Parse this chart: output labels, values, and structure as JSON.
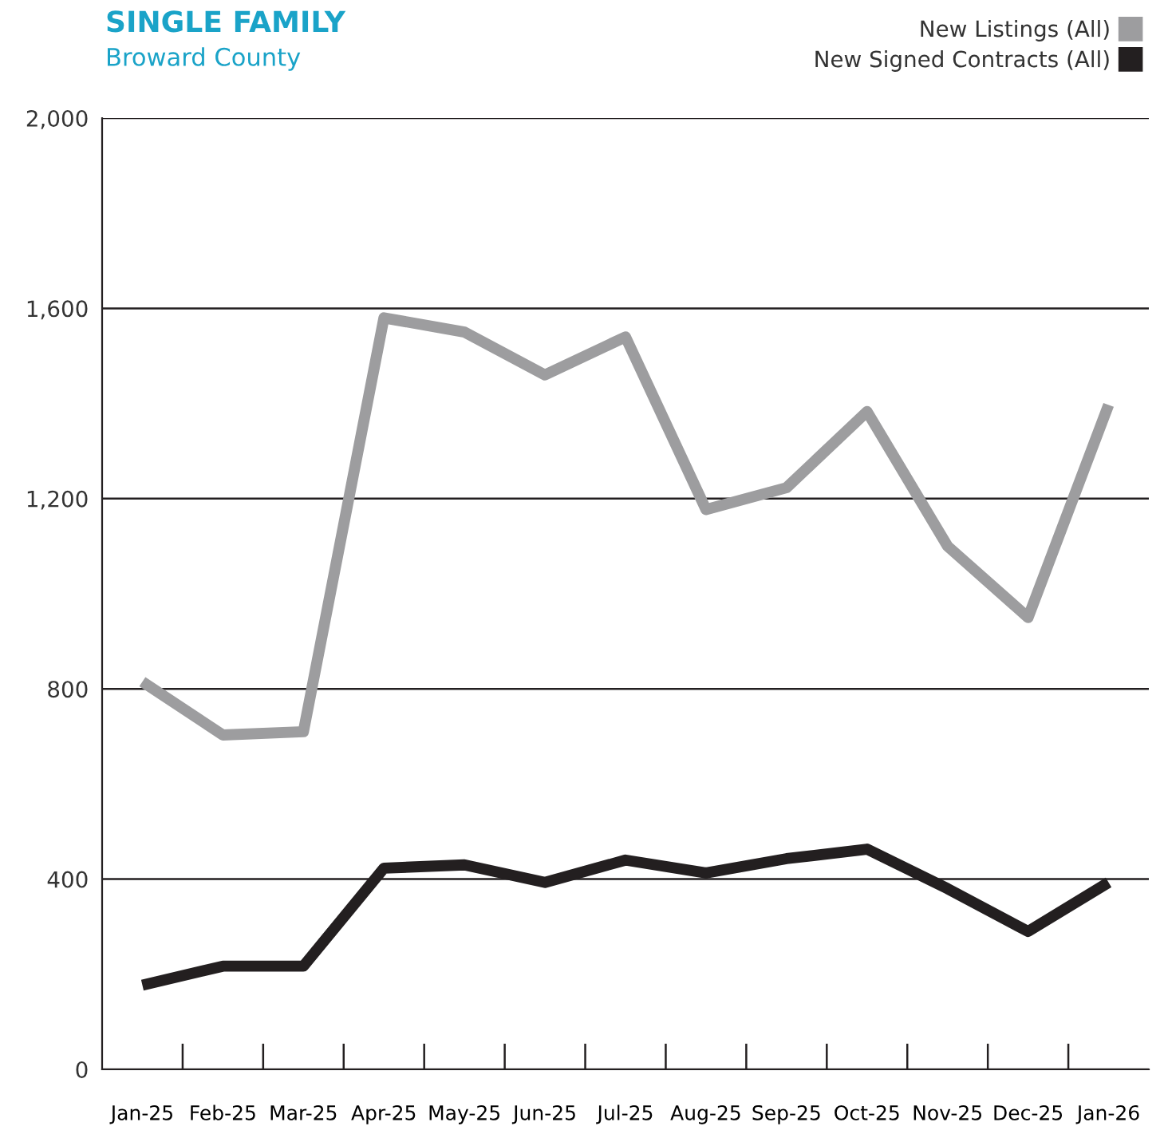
{
  "chart_data": {
    "type": "line",
    "title": "SINGLE FAMILY",
    "subtitle": "Broward County",
    "categories": [
      "Jan-25",
      "Feb-25",
      "Mar-25",
      "Apr-25",
      "May-25",
      "Jun-25",
      "Jul-25",
      "Aug-25",
      "Sep-25",
      "Oct-25",
      "Nov-25",
      "Dec-25",
      "Jan-26"
    ],
    "series": [
      {
        "name": "New Listings (All)",
        "color": "#9d9d9f",
        "values": [
          815,
          703,
          710,
          1580,
          1550,
          1460,
          1540,
          1177,
          1223,
          1383,
          1100,
          950,
          1397
        ]
      },
      {
        "name": "New Signed Contracts (All)",
        "color": "#231f20",
        "values": [
          177,
          217,
          217,
          423,
          430,
          393,
          440,
          413,
          443,
          463,
          380,
          290,
          393
        ]
      }
    ],
    "ylim": [
      0,
      2000
    ],
    "yticks": [
      0,
      {
        "value": 400,
        "label": "400"
      },
      {
        "value": 800,
        "label": "800"
      },
      {
        "value": 1200,
        "label": "1,200"
      },
      {
        "value": 1600,
        "label": "1,600"
      },
      {
        "value": 2000,
        "label": "2,000"
      }
    ],
    "grid": "y",
    "legend": "top right",
    "marker": "none",
    "line_style": "solid"
  }
}
